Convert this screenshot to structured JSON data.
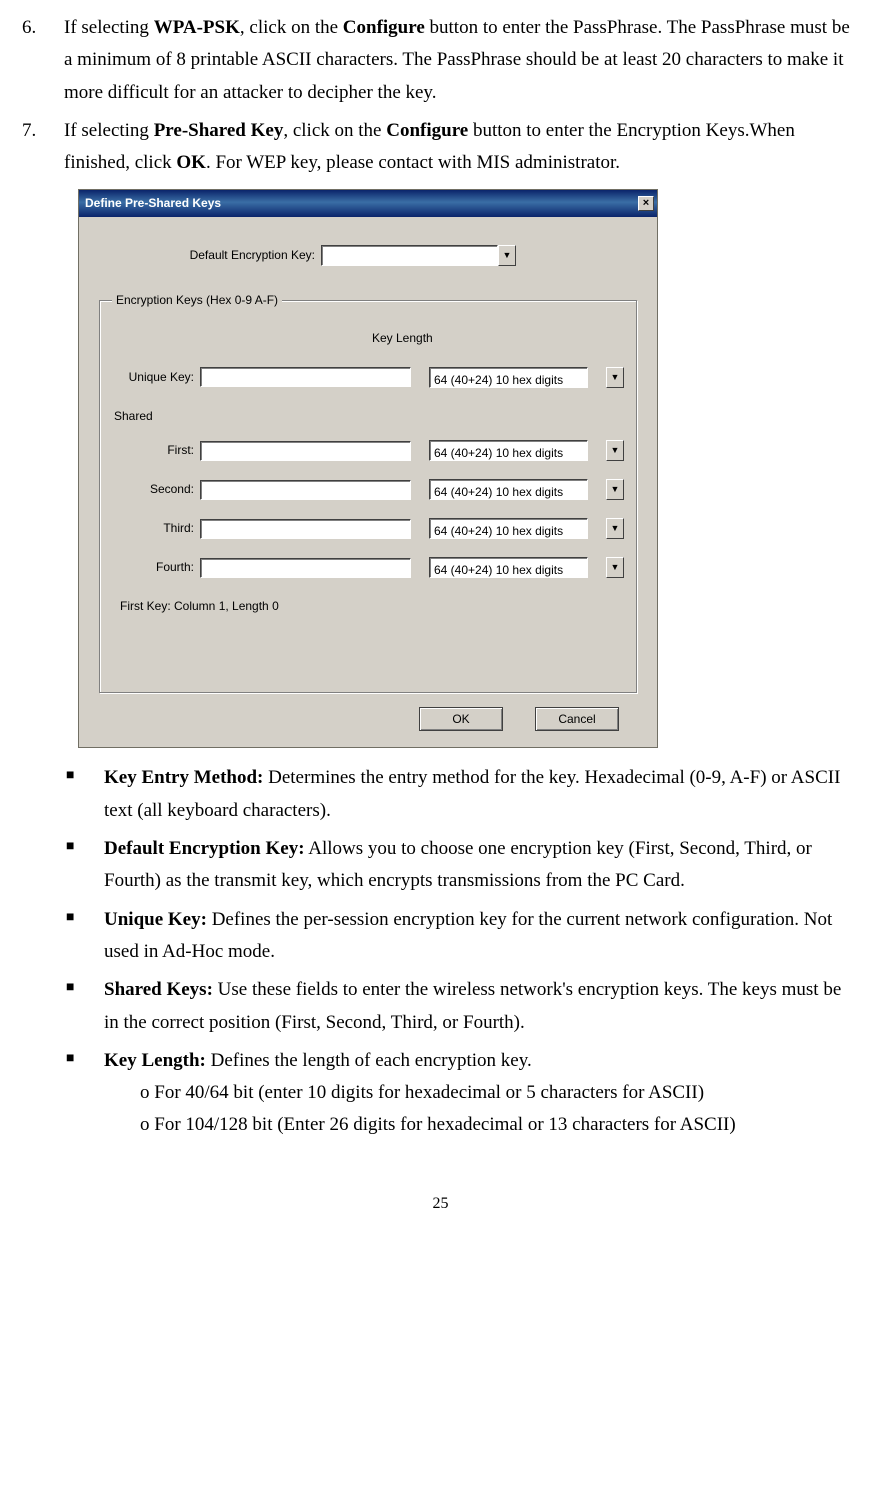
{
  "steps": [
    {
      "num": "6.",
      "parts": [
        "If selecting ",
        {
          "b": true,
          "t": "WPA-PSK"
        },
        ", click on the ",
        {
          "b": true,
          "t": "Configure"
        },
        " button to enter the PassPhrase. The PassPhrase must be a minimum of 8 printable ASCII characters. The PassPhrase should be at least 20 characters to make it more difficult for an attacker to decipher the key."
      ]
    },
    {
      "num": "7.",
      "parts": [
        "If selecting ",
        {
          "b": true,
          "t": "Pre-Shared Key"
        },
        ", click on the ",
        {
          "b": true,
          "t": "Configure"
        },
        " button to enter the Encryption Keys.When finished, click ",
        {
          "b": true,
          "t": "OK"
        },
        ". For WEP key, please contact with MIS administrator."
      ]
    }
  ],
  "dialog": {
    "title": "Define Pre-Shared Keys",
    "close": "×",
    "default_label": "Default Encryption Key:",
    "default_value": "",
    "groupbox_title": "Encryption Keys (Hex 0-9 A-F)",
    "key_length_header": "Key Length",
    "unique_label": "Unique Key:",
    "unique_value": "",
    "shared_label": "Shared",
    "rows": [
      {
        "label": "First:",
        "value": "",
        "len": "64  (40+24)  10 hex digits"
      },
      {
        "label": "Second:",
        "value": "",
        "len": "64  (40+24)  10 hex digits"
      },
      {
        "label": "Third:",
        "value": "",
        "len": "64  (40+24)  10 hex digits"
      },
      {
        "label": "Fourth:",
        "value": "",
        "len": "64  (40+24)  10 hex digits"
      }
    ],
    "unique_len": "64  (40+24)  10 hex digits",
    "status": "First Key: Column 1,  Length 0",
    "ok": "OK",
    "cancel": "Cancel"
  },
  "bullets": [
    {
      "label": "Key Entry Method:",
      "text": " Determines the entry method for the key. Hexadecimal (0-9, A-F) or ASCII text (all keyboard characters)."
    },
    {
      "label": "Default Encryption Key:",
      "text": " Allows you to choose one encryption key (First, Second, Third, or Fourth) as the transmit key, which encrypts transmissions from the PC Card."
    },
    {
      "label": "Unique Key:",
      "text": " Defines the per-session encryption key for the current network configuration. Not used in Ad-Hoc mode."
    },
    {
      "label": "Shared Keys:",
      "text": " Use these fields to enter the wireless network's encryption keys. The keys must be in the correct position (First, Second, Third, or Fourth)."
    },
    {
      "label": "Key Length:",
      "text": " Defines the length of each encryption key.",
      "subs": [
        "o For 40/64 bit (enter 10 digits for hexadecimal or 5 characters for ASCII)",
        "o For 104/128 bit (Enter 26 digits for hexadecimal or 13 characters for ASCII)"
      ]
    }
  ],
  "page_number": "25"
}
